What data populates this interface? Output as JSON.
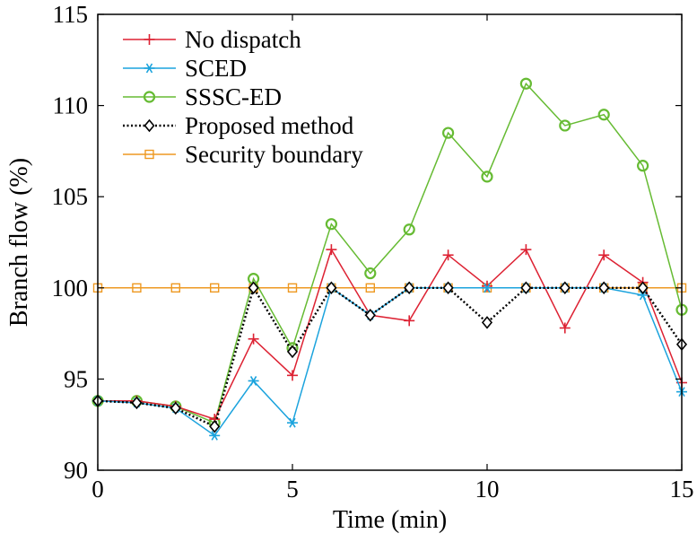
{
  "chart_data": {
    "type": "line",
    "xlabel": "Time (min)",
    "ylabel": "Branch flow (%)",
    "xlim": [
      0,
      15
    ],
    "ylim": [
      90,
      115
    ],
    "xticks": [
      0,
      5,
      10,
      15
    ],
    "yticks": [
      90,
      95,
      100,
      105,
      110,
      115
    ],
    "grid": false,
    "legend_position": "top-left",
    "x": [
      0,
      1,
      2,
      3,
      4,
      5,
      6,
      7,
      8,
      9,
      10,
      11,
      12,
      13,
      14,
      15
    ],
    "series": [
      {
        "name": "No dispatch",
        "color": "#dd2233",
        "marker": "plus",
        "line": "solid",
        "values": [
          93.8,
          93.8,
          93.5,
          92.8,
          97.2,
          95.2,
          102.1,
          98.5,
          98.2,
          101.8,
          100.1,
          102.1,
          97.8,
          101.8,
          100.3,
          94.8
        ]
      },
      {
        "name": "SCED",
        "color": "#1ba3dd",
        "marker": "asterisk",
        "line": "solid",
        "values": [
          93.8,
          93.7,
          93.4,
          91.9,
          94.9,
          92.6,
          100.0,
          98.5,
          100.0,
          100.0,
          100.0,
          100.0,
          100.0,
          100.0,
          99.6,
          94.3
        ]
      },
      {
        "name": "SSSC-ED",
        "color": "#66bb33",
        "marker": "circle",
        "line": "solid",
        "values": [
          93.8,
          93.8,
          93.5,
          92.6,
          100.5,
          96.7,
          103.5,
          100.8,
          103.2,
          108.5,
          106.1,
          111.2,
          108.9,
          109.5,
          106.7,
          98.8
        ]
      },
      {
        "name": "Proposed method",
        "color": "#000000",
        "marker": "diamond",
        "line": "dotted",
        "values": [
          93.8,
          93.7,
          93.4,
          92.4,
          100.0,
          96.5,
          100.0,
          98.5,
          100.0,
          100.0,
          98.1,
          100.0,
          100.0,
          100.0,
          100.0,
          96.9
        ]
      },
      {
        "name": "Security boundary",
        "color": "#ee9922",
        "marker": "square",
        "line": "solid",
        "values": [
          100,
          100,
          100,
          100,
          100,
          100,
          100,
          100,
          100,
          100,
          100,
          100,
          100,
          100,
          100,
          100
        ]
      }
    ]
  }
}
